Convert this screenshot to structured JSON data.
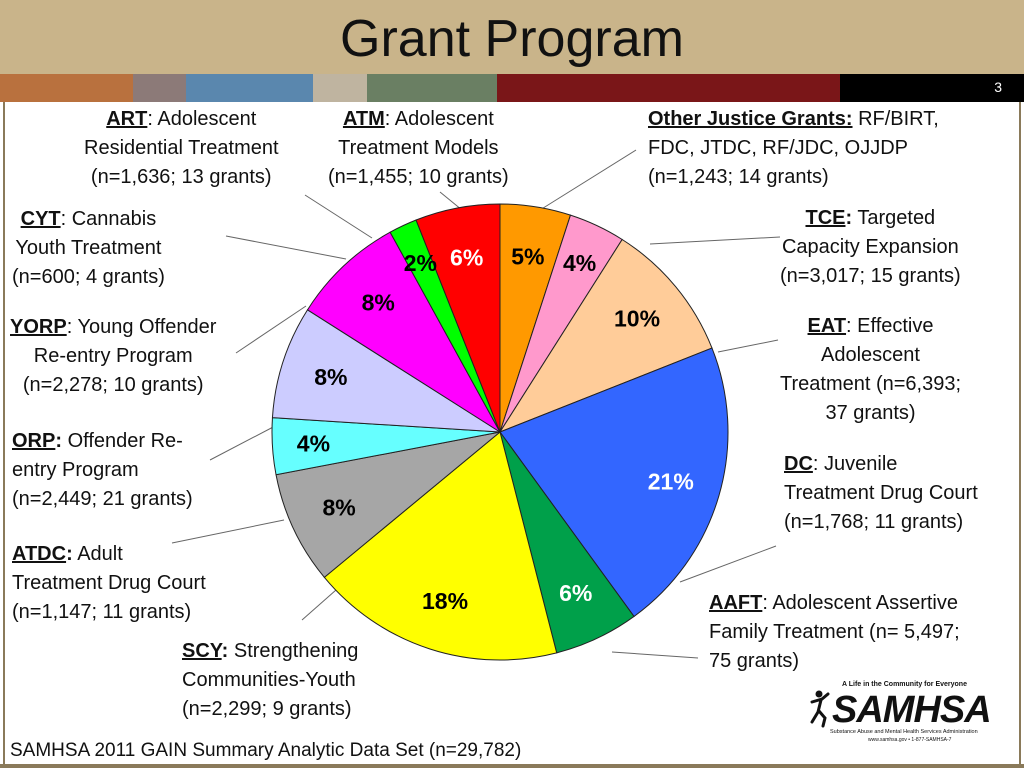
{
  "slide": {
    "title": "Grant Program",
    "slide_number": "3",
    "source_note": "SAMHSA 2011 GAIN Summary Analytic Data Set (n=29,782)",
    "strip_colors": [
      "#b9713e",
      "#8c7a78",
      "#5a87ae",
      "#5b86b0",
      "#bfb4a0",
      "#6a7f63",
      "#7a1618",
      "#7a1618",
      "#000000"
    ]
  },
  "logo": {
    "tagline": "A Life in the Community for Everyone",
    "wordmark": "SAMHSA",
    "subline": "Substance Abuse and Mental Health Services Administration",
    "contact": "www.samhsa.gov • 1-877-SAMHSA-7"
  },
  "labels": {
    "art": {
      "code": "ART",
      "sep": "",
      "text": ": Adolescent",
      "line2": "Residential Treatment",
      "line3": "(n=1,636; 13 grants)"
    },
    "atm": {
      "code": "ATM",
      "sep": "",
      "text": ": Adolescent",
      "line2": "Treatment Models",
      "line3": "(n=1,455; 10 grants)"
    },
    "other": {
      "code": "Other Justice Grants:",
      "sep": "",
      "text": "  RF/BIRT,",
      "line2": "FDC, JTDC, RF/JDC, OJJDP",
      "line3": "(n=1,243; 14 grants)"
    },
    "cyt": {
      "code": "CYT",
      "sep": "",
      "text": ": Cannabis",
      "line2": "Youth Treatment",
      "line3": "(n=600; 4 grants)"
    },
    "tce": {
      "code": "TCE",
      "sep": ":",
      "text": " Targeted",
      "line2": "Capacity Expansion",
      "line3": "(n=3,017; 15 grants)"
    },
    "yorp": {
      "code": "YORP",
      "sep": "",
      "text": ": Young Offender",
      "line2": "Re-entry Program",
      "line3": "(n=2,278; 10 grants)"
    },
    "eat": {
      "code": "EAT",
      "sep": "",
      "text": ": Effective",
      "line2": "Adolescent",
      "line3": "Treatment (n=6,393;",
      "line4": "37 grants)"
    },
    "orp": {
      "code": "ORP",
      "sep": ":",
      "text": " Offender Re-",
      "line2": "entry Program",
      "line3": "(n=2,449; 21 grants)"
    },
    "dc": {
      "code": "DC",
      "sep": "",
      "text": ": Juvenile",
      "line2": "Treatment Drug Court",
      "line3": "(n=1,768; 11 grants)"
    },
    "atdc": {
      "code": "ATDC",
      "sep": ":",
      "text": " Adult",
      "line2": "Treatment Drug Court",
      "line3": "(n=1,147; 11 grants)"
    },
    "aaft": {
      "code": "AAFT",
      "sep": "",
      "text": ": Adolescent Assertive",
      "line2": "Family Treatment (n= 5,497;",
      "line3": "75 grants)"
    },
    "scy": {
      "code": "SCY",
      "sep": ":",
      "text": " Strengthening",
      "line2": "Communities-Youth",
      "line3": "(n=2,299; 9 grants)"
    }
  },
  "chart_data": {
    "type": "pie",
    "title": "Grant Program",
    "start_angle_deg": 0,
    "direction": "clockwise",
    "slices": [
      {
        "key": "atm",
        "label": "ATM",
        "value": 5,
        "pct_label": "5%",
        "color": "#ff9900",
        "text_color": "#000000"
      },
      {
        "key": "other",
        "label": "Other Justice Grants",
        "value": 4,
        "pct_label": "4%",
        "color": "#ff99cc",
        "text_color": "#000000"
      },
      {
        "key": "tce",
        "label": "TCE",
        "value": 10,
        "pct_label": "10%",
        "color": "#ffcc99",
        "text_color": "#000000"
      },
      {
        "key": "eat",
        "label": "EAT",
        "value": 21,
        "pct_label": "21%",
        "color": "#3366ff",
        "text_color": "#ffffff"
      },
      {
        "key": "dc",
        "label": "DC",
        "value": 6,
        "pct_label": "6%",
        "color": "#00a04a",
        "text_color": "#ffffff"
      },
      {
        "key": "aaft",
        "label": "AAFT",
        "value": 18,
        "pct_label": "18%",
        "color": "#ffff00",
        "text_color": "#000000"
      },
      {
        "key": "scy",
        "label": "SCY",
        "value": 8,
        "pct_label": "8%",
        "color": "#a6a6a6",
        "text_color": "#000000"
      },
      {
        "key": "atdc",
        "label": "ATDC",
        "value": 4,
        "pct_label": "4%",
        "color": "#66ffff",
        "text_color": "#000000"
      },
      {
        "key": "orp",
        "label": "ORP",
        "value": 8,
        "pct_label": "8%",
        "color": "#ccccff",
        "text_color": "#000000"
      },
      {
        "key": "yorp",
        "label": "YORP",
        "value": 8,
        "pct_label": "8%",
        "color": "#ff00ff",
        "text_color": "#000000"
      },
      {
        "key": "cyt",
        "label": "CYT",
        "value": 2,
        "pct_label": "2%",
        "color": "#00ff00",
        "text_color": "#000000"
      },
      {
        "key": "art",
        "label": "ART",
        "value": 6,
        "pct_label": "6%",
        "color": "#ff0000",
        "text_color": "#ffffff"
      }
    ]
  }
}
